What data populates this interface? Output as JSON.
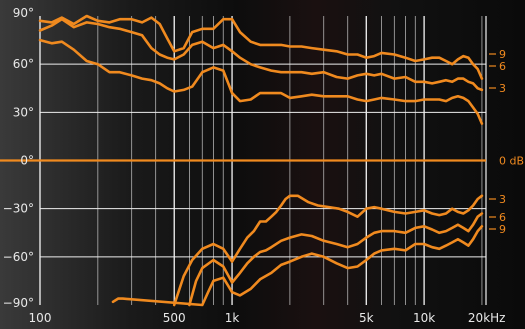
{
  "chart_data": {
    "type": "line",
    "title": "",
    "xlabel": "",
    "ylabel": "",
    "x_scale": "log",
    "xlim": [
      100,
      21000
    ],
    "ylim": [
      -90,
      90
    ],
    "y_ticks": [
      "90°",
      "60°",
      "30°",
      "0°",
      "−30°",
      "−60°",
      "−90°"
    ],
    "y_tick_values": [
      90,
      60,
      30,
      0,
      -30,
      -60,
      -90
    ],
    "x_ticks": [
      "100",
      "500",
      "1k",
      "5k",
      "10k",
      "20kHz"
    ],
    "x_tick_values": [
      100,
      500,
      1000,
      5000,
      10000,
      20000
    ],
    "grid": true,
    "line_color": "#f08a1f",
    "series": [
      {
        "name": "-9",
        "x": [
          100,
          115,
          130,
          150,
          175,
          200,
          230,
          260,
          300,
          340,
          380,
          420,
          460,
          500,
          560,
          620,
          700,
          800,
          900,
          1000,
          1100,
          1250,
          1400,
          1600,
          1800,
          2000,
          2300,
          2600,
          3000,
          3500,
          4000,
          4500,
          5000,
          5500,
          6000,
          7000,
          8000,
          9000,
          10000,
          11000,
          12000,
          13000,
          14000,
          15000,
          16000,
          17000,
          18000,
          19000,
          20000
        ],
        "y": [
          87,
          86,
          89,
          85,
          90,
          87,
          86,
          88,
          88,
          86,
          89,
          85,
          76,
          68,
          70,
          80,
          82,
          82,
          88,
          88,
          80,
          74,
          72,
          72,
          72,
          71,
          71,
          70,
          69,
          68,
          66,
          66,
          64,
          65,
          67,
          66,
          64,
          62,
          63,
          64,
          64,
          62,
          60,
          63,
          65,
          64,
          60,
          57,
          51
        ]
      },
      {
        "name": "-6",
        "x": [
          100,
          115,
          130,
          150,
          175,
          200,
          230,
          260,
          300,
          340,
          380,
          420,
          460,
          500,
          560,
          620,
          700,
          800,
          900,
          1000,
          1100,
          1250,
          1400,
          1600,
          1800,
          2000,
          2300,
          2600,
          3000,
          3500,
          4000,
          4500,
          5000,
          5500,
          6000,
          7000,
          8000,
          9000,
          10000,
          11000,
          12000,
          13000,
          14000,
          15000,
          16000,
          17000,
          18000,
          19000,
          20000
        ],
        "y": [
          81,
          84,
          88,
          83,
          86,
          85,
          83,
          82,
          80,
          78,
          70,
          66,
          64,
          63,
          66,
          72,
          74,
          70,
          72,
          68,
          64,
          60,
          58,
          56,
          55,
          55,
          55,
          54,
          55,
          52,
          51,
          53,
          54,
          53,
          54,
          51,
          52,
          49,
          49,
          48,
          49,
          50,
          49,
          51,
          51,
          49,
          48,
          45,
          44
        ]
      },
      {
        "name": "-3",
        "x": [
          100,
          115,
          130,
          150,
          175,
          200,
          230,
          260,
          300,
          340,
          380,
          420,
          460,
          500,
          560,
          620,
          700,
          800,
          900,
          1000,
          1100,
          1250,
          1400,
          1600,
          1800,
          2000,
          2300,
          2600,
          3000,
          3500,
          4000,
          4500,
          5000,
          5500,
          6000,
          7000,
          8000,
          9000,
          10000,
          11000,
          12000,
          13000,
          14000,
          15000,
          16000,
          17000,
          18000,
          19000,
          20000
        ],
        "y": [
          75,
          73,
          74,
          69,
          62,
          60,
          55,
          55,
          53,
          51,
          50,
          48,
          45,
          43,
          44,
          46,
          55,
          58,
          56,
          42,
          37,
          38,
          42,
          42,
          42,
          39,
          40,
          41,
          40,
          40,
          40,
          38,
          37,
          38,
          39,
          38,
          37,
          37,
          38,
          38,
          38,
          37,
          39,
          40,
          39,
          37,
          33,
          29,
          23
        ]
      },
      {
        "name": "-3",
        "x": [
          500,
          560,
          620,
          700,
          800,
          900,
          1000,
          1100,
          1200,
          1300,
          1400,
          1500,
          1600,
          1700,
          1800,
          1900,
          2000,
          2200,
          2500,
          2800,
          3200,
          3600,
          4000,
          4500,
          5000,
          5500,
          6000,
          7000,
          8000,
          9000,
          10000,
          11000,
          12000,
          13000,
          14000,
          15000,
          16000,
          17000,
          18000,
          19000,
          20000
        ],
        "y": [
          -90,
          -72,
          -62,
          -55,
          -52,
          -55,
          -63,
          -55,
          -48,
          -44,
          -38,
          -38,
          -35,
          -32,
          -28,
          -24,
          -22,
          -22,
          -26,
          -28,
          -29,
          -30,
          -32,
          -35,
          -30,
          -29,
          -30,
          -32,
          -33,
          -32,
          -31,
          -33,
          -34,
          -33,
          -30,
          -32,
          -33,
          -31,
          -28,
          -24,
          -22
        ]
      },
      {
        "name": "-6",
        "x": [
          600,
          650,
          700,
          800,
          900,
          1000,
          1100,
          1200,
          1300,
          1400,
          1500,
          1600,
          1800,
          2000,
          2300,
          2600,
          3000,
          3500,
          4000,
          4500,
          5000,
          5500,
          6000,
          7000,
          8000,
          9000,
          10000,
          11000,
          12000,
          13000,
          14000,
          15000,
          16000,
          17000,
          18000,
          19000,
          20000
        ],
        "y": [
          -90,
          -75,
          -67,
          -62,
          -66,
          -76,
          -70,
          -64,
          -60,
          -57,
          -56,
          -54,
          -50,
          -48,
          -46,
          -47,
          -50,
          -52,
          -54,
          -52,
          -48,
          -45,
          -44,
          -44,
          -45,
          -42,
          -41,
          -43,
          -45,
          -44,
          -42,
          -40,
          -42,
          -44,
          -40,
          -35,
          -33
        ]
      },
      {
        "name": "-9",
        "x": [
          240,
          255,
          270,
          700,
          750,
          800,
          900,
          1000,
          1100,
          1250,
          1400,
          1600,
          1800,
          2000,
          2300,
          2600,
          3000,
          3500,
          4000,
          4500,
          5000,
          5500,
          6000,
          7000,
          8000,
          9000,
          10000,
          11000,
          12000,
          13000,
          14000,
          15000,
          16000,
          17000,
          18000,
          19000,
          20000
        ],
        "y": [
          -88,
          -86,
          -86,
          -90,
          -82,
          -75,
          -73,
          -82,
          -84,
          -80,
          -74,
          -70,
          -65,
          -63,
          -60,
          -58,
          -60,
          -64,
          -67,
          -66,
          -62,
          -58,
          -56,
          -55,
          -56,
          -52,
          -52,
          -54,
          -55,
          -53,
          -51,
          -49,
          -51,
          -53,
          -49,
          -44,
          -41
        ]
      }
    ],
    "level_labels": {
      "top": [
        "9",
        "6",
        "3"
      ],
      "bottom": [
        "3",
        "6",
        "9"
      ],
      "zero": "0 dB"
    }
  }
}
